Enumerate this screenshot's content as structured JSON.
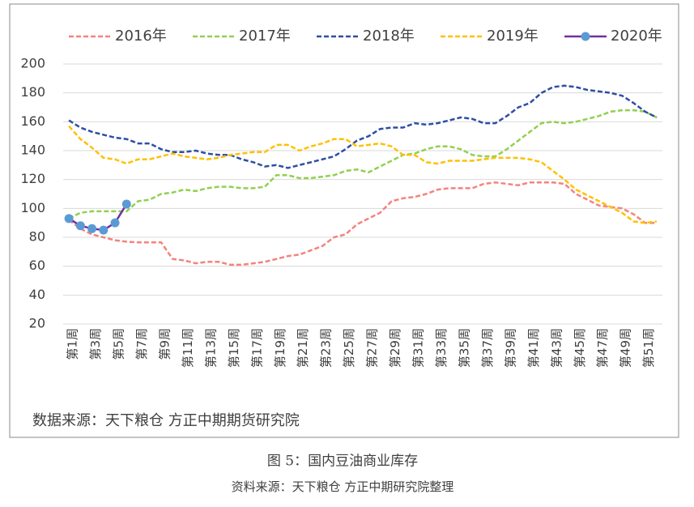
{
  "chart_data": {
    "type": "line",
    "source": "数据来源：天下粮仓 方正中期期货研究院",
    "categories": [
      "第1周",
      null,
      "第3周",
      null,
      "第5周",
      null,
      "第7周",
      null,
      "第9周",
      null,
      "第11周",
      null,
      "第13周",
      null,
      "第15周",
      null,
      "第17周",
      null,
      "第19周",
      null,
      "第21周",
      null,
      "第23周",
      null,
      "第25周",
      null,
      "第27周",
      null,
      "第29周",
      null,
      "第31周",
      null,
      "第33周",
      null,
      "第35周",
      null,
      "第37周",
      null,
      "第39周",
      null,
      "第41周",
      null,
      "第43周",
      null,
      "第45周",
      null,
      "第47周",
      null,
      "第49周",
      null,
      "第51周",
      null
    ],
    "series": [
      {
        "name": "2016年",
        "color": "#f4837d",
        "dash": true,
        "values": [
          92,
          86,
          82,
          80,
          78,
          77,
          76.5,
          76.5,
          76.5,
          65,
          64,
          62,
          63,
          63,
          61,
          61,
          62,
          63,
          65,
          67,
          68,
          71,
          74,
          80,
          82,
          89,
          93,
          97,
          105,
          107,
          108,
          110,
          113,
          114,
          114,
          114,
          117,
          118,
          117,
          116,
          118,
          118,
          118,
          117,
          110,
          106,
          102,
          101,
          100,
          96,
          90,
          90
        ]
      },
      {
        "name": "2017年",
        "color": "#92d050",
        "dash": true,
        "values": [
          93,
          97,
          98,
          98,
          98,
          98,
          105,
          106,
          110,
          111,
          113,
          112,
          114,
          115,
          115,
          114,
          114,
          115,
          123,
          123,
          121,
          121,
          122,
          123,
          126,
          127,
          125,
          129,
          133,
          137,
          138,
          141,
          143,
          143,
          141,
          137,
          136,
          136,
          141,
          147,
          153,
          159,
          160,
          159,
          160,
          162,
          164,
          167,
          168,
          168,
          167,
          163
        ]
      },
      {
        "name": "2018年",
        "color": "#2e4fa3",
        "dash": true,
        "values": [
          161,
          156,
          153,
          151,
          149,
          148,
          145,
          145,
          141,
          139,
          139,
          140,
          138,
          137,
          137,
          134,
          132,
          129,
          130,
          128,
          130,
          132,
          134,
          136,
          141,
          147,
          150,
          155,
          156,
          156,
          159,
          158,
          159,
          161,
          163,
          162,
          159,
          159,
          164,
          170,
          173,
          180,
          184,
          185,
          184,
          182,
          181,
          180,
          178,
          173,
          167,
          163
        ]
      },
      {
        "name": "2019年",
        "color": "#ffc000",
        "dash": true,
        "values": [
          157,
          148,
          142,
          135,
          134,
          131,
          134,
          134,
          136,
          138,
          136,
          135,
          134,
          135,
          137,
          138,
          139,
          139,
          144,
          144,
          140,
          143,
          145,
          148,
          148,
          143,
          144,
          145,
          143,
          137,
          137,
          132,
          131,
          133,
          133,
          133,
          134,
          135,
          135,
          135,
          134,
          132,
          126,
          120,
          113,
          109,
          105,
          101,
          97,
          91,
          90,
          91
        ]
      },
      {
        "name": "2020年",
        "color": "#7030a0",
        "marker_color": "#5b9bd5",
        "dash": false,
        "values": [
          93,
          88,
          86,
          85,
          90,
          103,
          null,
          null,
          null,
          null,
          null,
          null,
          null,
          null,
          null,
          null,
          null,
          null,
          null,
          null,
          null,
          null,
          null,
          null,
          null,
          null,
          null,
          null,
          null,
          null,
          null,
          null,
          null,
          null,
          null,
          null,
          null,
          null,
          null,
          null,
          null,
          null,
          null,
          null,
          null,
          null,
          null,
          null,
          null,
          null,
          null,
          null
        ]
      }
    ],
    "ylim": [
      20,
      200
    ],
    "yticks": [
      20,
      40,
      60,
      80,
      100,
      120,
      140,
      160,
      180,
      200
    ],
    "grid": true,
    "legend": "top"
  },
  "caption": "图 5：国内豆油商业库存",
  "caption_source": "资料来源：天下粮仓  方正中期研究院整理"
}
